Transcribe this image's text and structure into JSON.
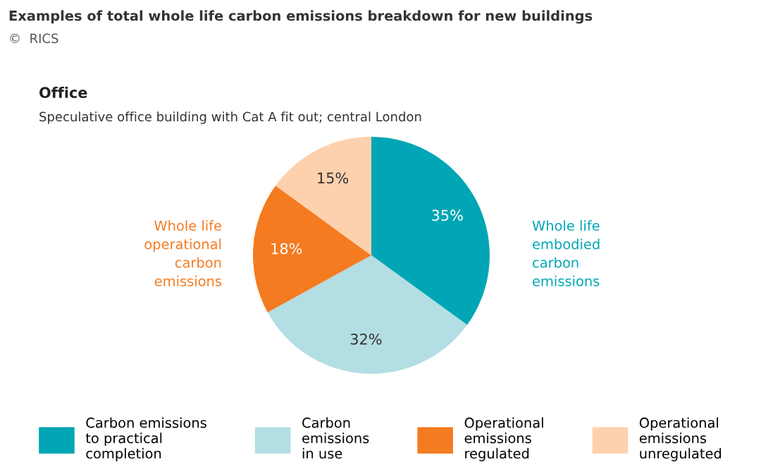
{
  "chart_data": {
    "type": "pie",
    "title": "Examples of total whole life carbon emissions breakdown for new buildings",
    "subtitle": "©  RICS",
    "annotations": [
      "Office",
      "Speculative office building with Cat A fit out; central London",
      "Whole life\noperational\ncarbon\nemissions",
      "Whole life\nembodied\ncarbon\nemissions"
    ],
    "categories": [
      "Carbon emissions\nto practical\ncompletion",
      "Carbon\nemissions\nin use",
      "Operational\nemissions\nregulated",
      "Operational\nemissions\nunregulated"
    ],
    "values": [
      35,
      32,
      18,
      15
    ],
    "value_labels": [
      "35%",
      "32%",
      "18%",
      "15%"
    ],
    "colors": [
      "#00a6b5",
      "#b3dee3",
      "#f47b20",
      "#fdd1ae"
    ],
    "legend": "bottom"
  }
}
